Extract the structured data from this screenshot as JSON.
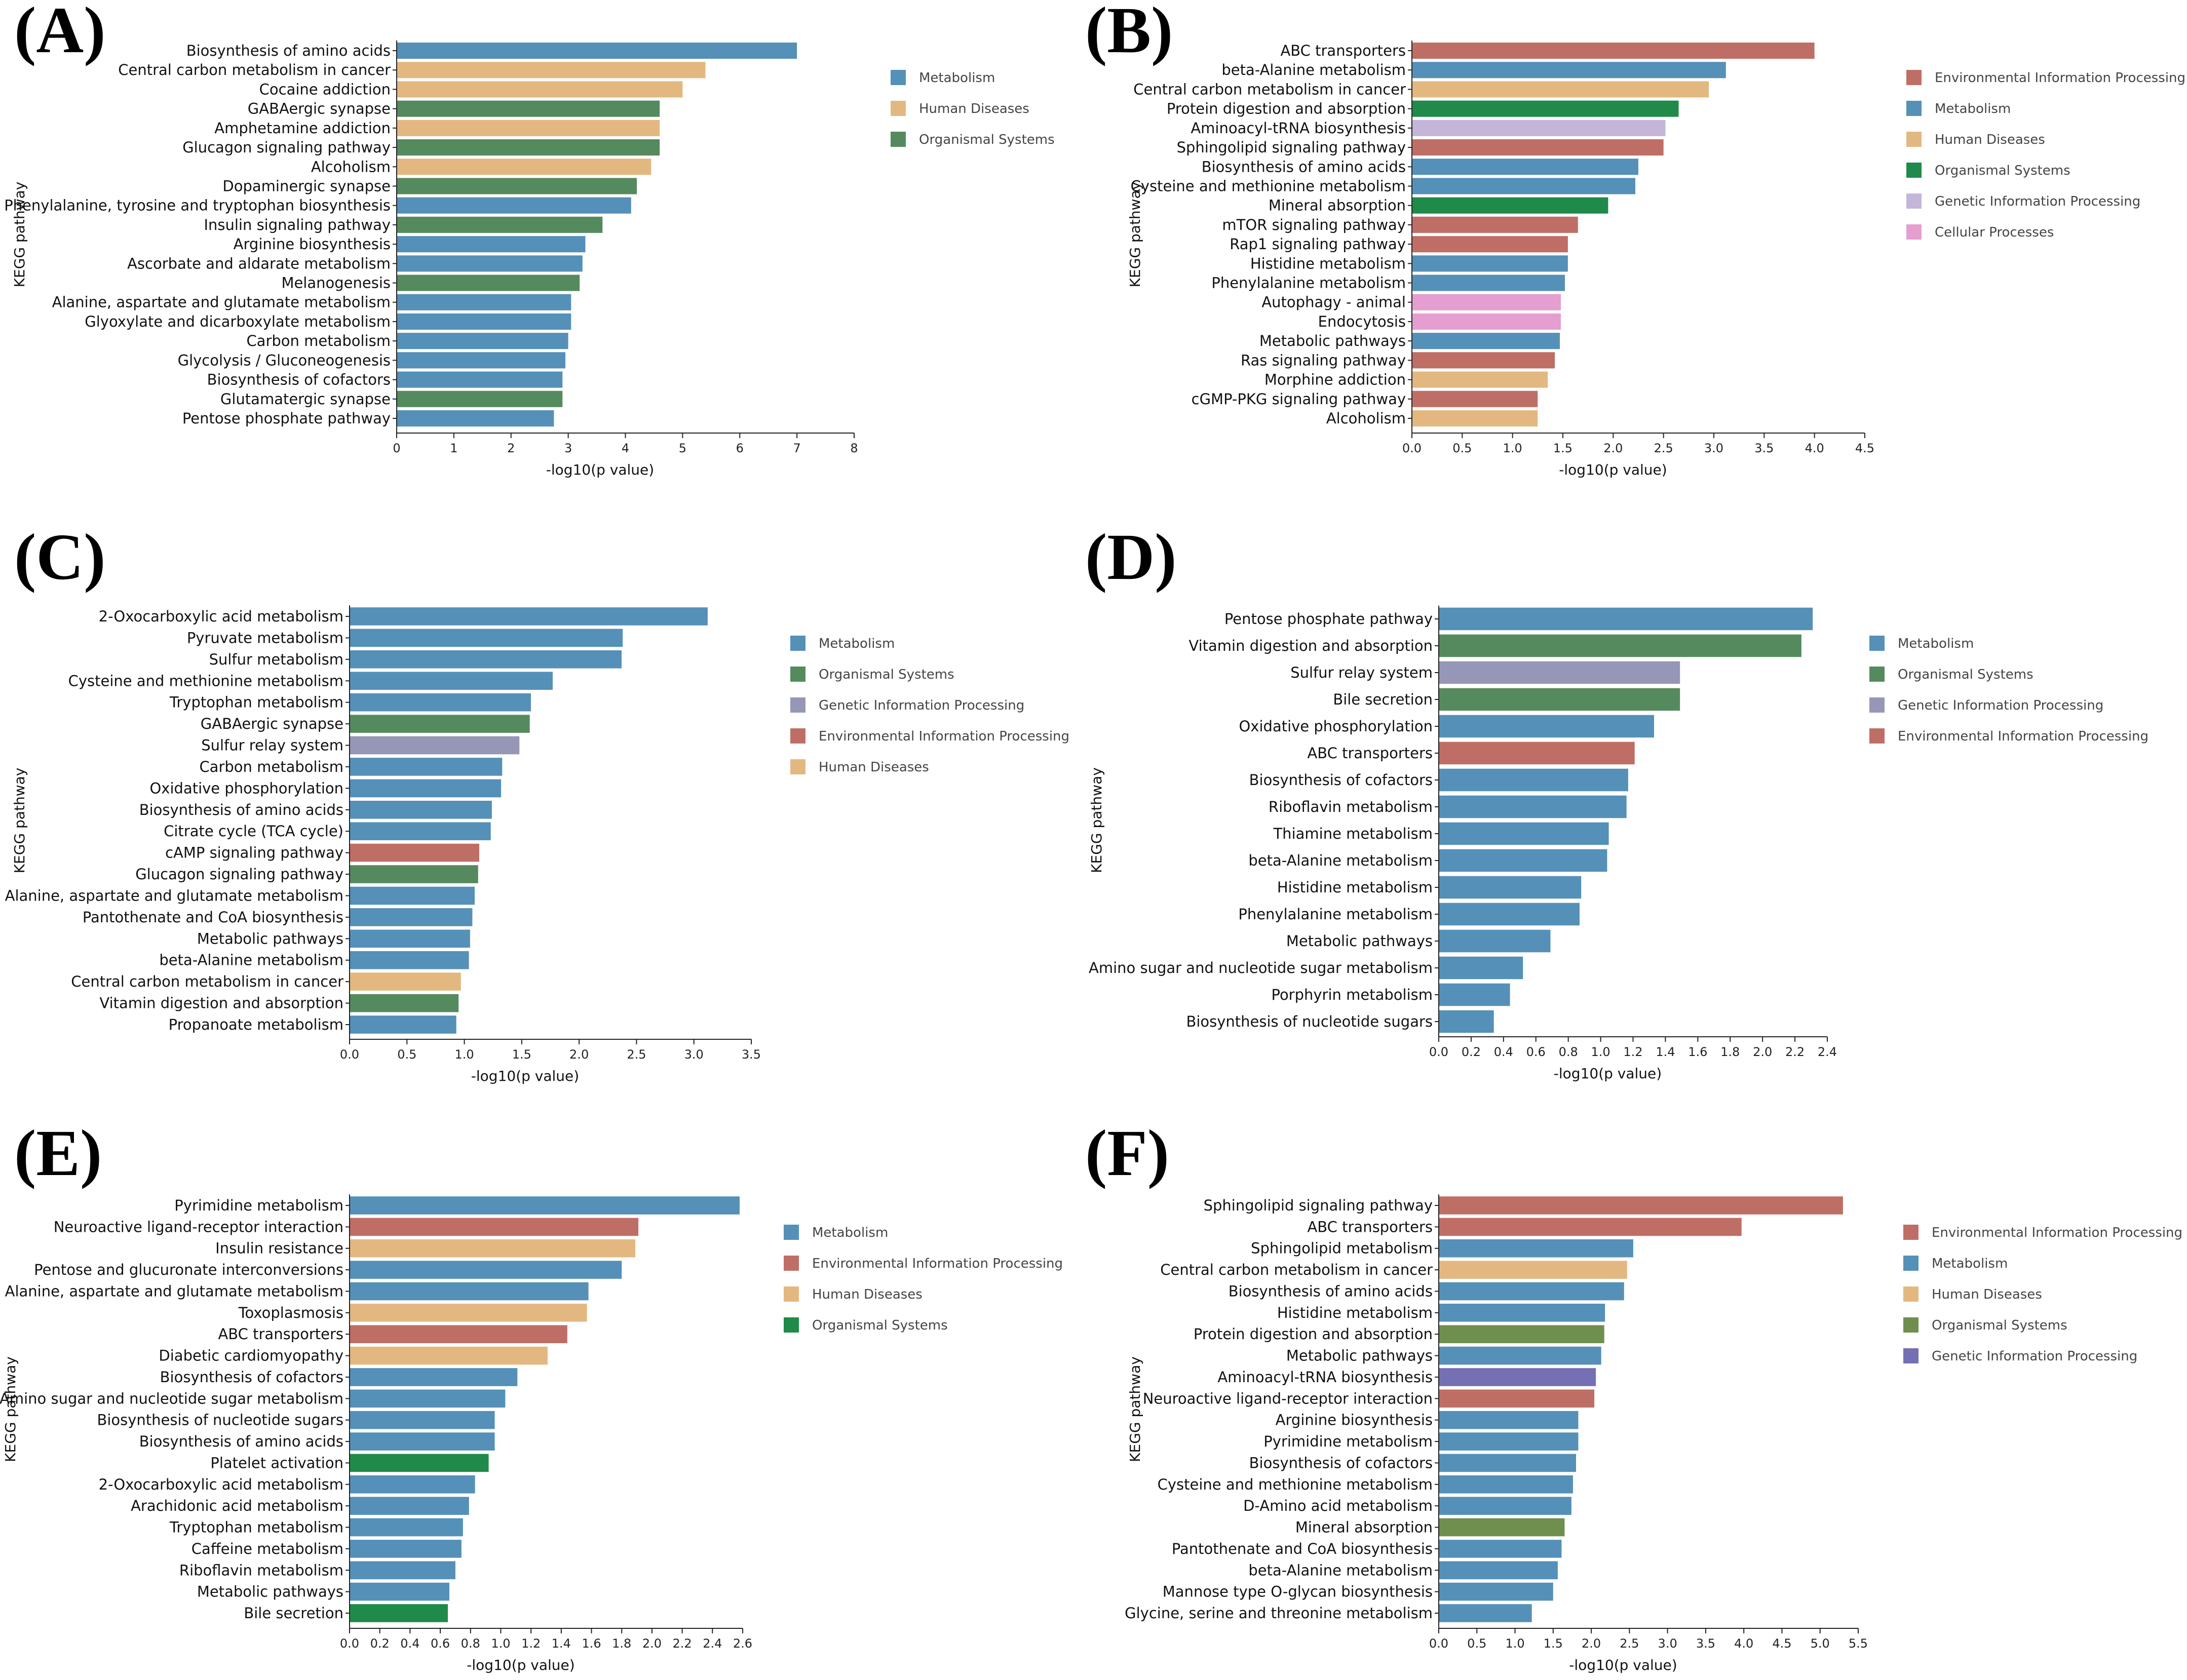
{
  "colors": {
    "Metabolism": "#5590b8",
    "Human Diseases": "#e3b880",
    "Organismal Systems": "#558a5f",
    "Environmental Information Processing": "#bf6e66",
    "Genetic Information Processing": "#9697b6",
    "Cellular Processes": "#e59ed0"
  },
  "chart_data": [
    {
      "type": "bar",
      "orientation": "horizontal",
      "panel": "(A)",
      "ylabel": "KEGG pathway",
      "xlabel": "-log10(p value)",
      "xlim": [
        0,
        8
      ],
      "xticks": [
        "0",
        "1",
        "2",
        "3",
        "4",
        "5",
        "6",
        "7",
        "8"
      ],
      "colors": {
        "Metabolism": "#5590b8",
        "Human Diseases": "#e3b880",
        "Organismal Systems": "#558a5f"
      },
      "legend": [
        "Metabolism",
        "Human Diseases",
        "Organismal Systems"
      ],
      "categories": [
        "Biosynthesis of amino acids",
        "Central carbon metabolism in cancer",
        "Cocaine addiction",
        "GABAergic synapse",
        "Amphetamine addiction",
        "Glucagon signaling pathway",
        "Alcoholism",
        "Dopaminergic synapse",
        "Phenylalanine, tyrosine and tryptophan biosynthesis",
        "Insulin signaling pathway",
        "Arginine biosynthesis",
        "Ascorbate and aldarate metabolism",
        "Melanogenesis",
        "Alanine, aspartate and glutamate metabolism",
        "Glyoxylate and dicarboxylate metabolism",
        "Carbon metabolism",
        "Glycolysis / Gluconeogenesis",
        "Biosynthesis of cofactors",
        "Glutamatergic synapse",
        "Pentose phosphate pathway"
      ],
      "values": [
        7.0,
        5.4,
        5.0,
        4.6,
        4.6,
        4.6,
        4.45,
        4.2,
        4.1,
        3.6,
        3.3,
        3.25,
        3.2,
        3.05,
        3.05,
        3.0,
        2.95,
        2.9,
        2.9,
        2.75
      ],
      "groups": [
        "Metabolism",
        "Human Diseases",
        "Human Diseases",
        "Organismal Systems",
        "Human Diseases",
        "Organismal Systems",
        "Human Diseases",
        "Organismal Systems",
        "Metabolism",
        "Organismal Systems",
        "Metabolism",
        "Metabolism",
        "Organismal Systems",
        "Metabolism",
        "Metabolism",
        "Metabolism",
        "Metabolism",
        "Metabolism",
        "Organismal Systems",
        "Metabolism"
      ]
    },
    {
      "type": "bar",
      "orientation": "horizontal",
      "panel": "(B)",
      "ylabel": "KEGG pathway",
      "xlabel": "-log10(p value)",
      "xlim": [
        0,
        4.5
      ],
      "xticks": [
        "0.0",
        "0.5",
        "1.0",
        "1.5",
        "2.0",
        "2.5",
        "3.0",
        "3.5",
        "4.0",
        "4.5"
      ],
      "colors": {
        "Environmental Information Processing": "#bf6e66",
        "Metabolism": "#5590b8",
        "Human Diseases": "#e3b880",
        "Organismal Systems": "#1f8a4a",
        "Genetic Information Processing": "#c3b6d9",
        "Cellular Processes": "#e59ed0"
      },
      "legend": [
        "Environmental Information Processing",
        "Metabolism",
        "Human Diseases",
        "Organismal Systems",
        "Genetic Information Processing",
        "Cellular Processes"
      ],
      "categories": [
        "ABC transporters",
        "beta-Alanine metabolism",
        "Central carbon metabolism in cancer",
        "Protein digestion and absorption",
        "Aminoacyl-tRNA biosynthesis",
        "Sphingolipid signaling pathway",
        "Biosynthesis of amino acids",
        "Cysteine and methionine metabolism",
        "Mineral absorption",
        "mTOR signaling pathway",
        "Rap1 signaling pathway",
        "Histidine metabolism",
        "Phenylalanine metabolism",
        "Autophagy - animal",
        "Endocytosis",
        "Metabolic pathways",
        "Ras signaling pathway",
        "Morphine addiction",
        "cGMP-PKG signaling pathway",
        "Alcoholism"
      ],
      "values": [
        4.0,
        3.12,
        2.95,
        2.65,
        2.52,
        2.5,
        2.25,
        2.22,
        1.95,
        1.65,
        1.55,
        1.55,
        1.52,
        1.48,
        1.48,
        1.47,
        1.42,
        1.35,
        1.25,
        1.25
      ],
      "groups": [
        "Environmental Information Processing",
        "Metabolism",
        "Human Diseases",
        "Organismal Systems",
        "Genetic Information Processing",
        "Environmental Information Processing",
        "Metabolism",
        "Metabolism",
        "Organismal Systems",
        "Environmental Information Processing",
        "Environmental Information Processing",
        "Metabolism",
        "Metabolism",
        "Cellular Processes",
        "Cellular Processes",
        "Metabolism",
        "Environmental Information Processing",
        "Human Diseases",
        "Environmental Information Processing",
        "Human Diseases"
      ]
    },
    {
      "type": "bar",
      "orientation": "horizontal",
      "panel": "(C)",
      "ylabel": "KEGG pathway",
      "xlabel": "-log10(p value)",
      "xlim": [
        0,
        3.5
      ],
      "xticks": [
        "0.0",
        "0.5",
        "1.0",
        "1.5",
        "2.0",
        "2.5",
        "3.0",
        "3.5"
      ],
      "colors": {
        "Metabolism": "#5590b8",
        "Organismal Systems": "#558a5f",
        "Genetic Information Processing": "#9697b6",
        "Environmental Information Processing": "#bf6e66",
        "Human Diseases": "#e3b880"
      },
      "legend": [
        "Metabolism",
        "Organismal Systems",
        "Genetic Information Processing",
        "Environmental Information Processing",
        "Human Diseases"
      ],
      "categories": [
        "2-Oxocarboxylic acid metabolism",
        "Pyruvate metabolism",
        "Sulfur metabolism",
        "Cysteine and methionine metabolism",
        "Tryptophan metabolism",
        "GABAergic synapse",
        "Sulfur relay system",
        "Carbon metabolism",
        "Oxidative phosphorylation",
        "Biosynthesis of amino acids",
        "Citrate cycle (TCA cycle)",
        "cAMP signaling pathway",
        "Glucagon signaling pathway",
        "Alanine, aspartate and glutamate metabolism",
        "Pantothenate and CoA biosynthesis",
        "Metabolic pathways",
        "beta-Alanine metabolism",
        "Central carbon metabolism in cancer",
        "Vitamin digestion and absorption",
        "Propanoate metabolism"
      ],
      "values": [
        3.12,
        2.38,
        2.37,
        1.77,
        1.58,
        1.57,
        1.48,
        1.33,
        1.32,
        1.24,
        1.23,
        1.13,
        1.12,
        1.09,
        1.07,
        1.05,
        1.04,
        0.97,
        0.95,
        0.93
      ],
      "groups": [
        "Metabolism",
        "Metabolism",
        "Metabolism",
        "Metabolism",
        "Metabolism",
        "Organismal Systems",
        "Genetic Information Processing",
        "Metabolism",
        "Metabolism",
        "Metabolism",
        "Metabolism",
        "Environmental Information Processing",
        "Organismal Systems",
        "Metabolism",
        "Metabolism",
        "Metabolism",
        "Metabolism",
        "Human Diseases",
        "Organismal Systems",
        "Metabolism"
      ]
    },
    {
      "type": "bar",
      "orientation": "horizontal",
      "panel": "(D)",
      "ylabel": "KEGG pathway",
      "xlabel": "-log10(p value)",
      "xlim": [
        0,
        2.4
      ],
      "xticks": [
        "0.0",
        "0.2",
        "0.4",
        "0.6",
        "0.8",
        "1.0",
        "1.2",
        "1.4",
        "1.6",
        "1.8",
        "2.0",
        "2.2",
        "2.4"
      ],
      "colors": {
        "Metabolism": "#5590b8",
        "Organismal Systems": "#558a5f",
        "Genetic Information Processing": "#9697b6",
        "Environmental Information Processing": "#bf6e66"
      },
      "legend": [
        "Metabolism",
        "Organismal Systems",
        "Genetic Information Processing",
        "Environmental Information Processing"
      ],
      "categories": [
        "Pentose phosphate pathway",
        "Vitamin digestion and absorption",
        "Sulfur relay system",
        "Bile secretion",
        "Oxidative phosphorylation",
        "ABC transporters",
        "Biosynthesis of cofactors",
        "Riboflavin metabolism",
        "Thiamine metabolism",
        "beta-Alanine metabolism",
        "Histidine metabolism",
        "Phenylalanine metabolism",
        "Metabolic pathways",
        "Amino sugar and nucleotide sugar metabolism",
        "Porphyrin metabolism",
        "Biosynthesis of nucleotide sugars"
      ],
      "values": [
        2.31,
        2.24,
        1.49,
        1.49,
        1.33,
        1.21,
        1.17,
        1.16,
        1.05,
        1.04,
        0.88,
        0.87,
        0.69,
        0.52,
        0.44,
        0.34
      ],
      "groups": [
        "Metabolism",
        "Organismal Systems",
        "Genetic Information Processing",
        "Organismal Systems",
        "Metabolism",
        "Environmental Information Processing",
        "Metabolism",
        "Metabolism",
        "Metabolism",
        "Metabolism",
        "Metabolism",
        "Metabolism",
        "Metabolism",
        "Metabolism",
        "Metabolism",
        "Metabolism"
      ]
    },
    {
      "type": "bar",
      "orientation": "horizontal",
      "panel": "(E)",
      "ylabel": "KEGG pathway",
      "xlabel": "-log10(p value)",
      "xlim": [
        0,
        2.6
      ],
      "xticks": [
        "0.0",
        "0.2",
        "0.4",
        "0.6",
        "0.8",
        "1.0",
        "1.2",
        "1.4",
        "1.6",
        "1.8",
        "2.0",
        "2.2",
        "2.4",
        "2.6"
      ],
      "colors": {
        "Metabolism": "#5590b8",
        "Environmental Information Processing": "#bf6e66",
        "Human Diseases": "#e3b880",
        "Organismal Systems": "#1f8a4a"
      },
      "legend": [
        "Metabolism",
        "Environmental Information Processing",
        "Human Diseases",
        "Organismal Systems"
      ],
      "categories": [
        "Pyrimidine metabolism",
        "Neuroactive ligand-receptor interaction",
        "Insulin resistance",
        "Pentose and glucuronate interconversions",
        "Alanine, aspartate and glutamate metabolism",
        "Toxoplasmosis",
        "ABC transporters",
        "Diabetic cardiomyopathy",
        "Biosynthesis of cofactors",
        "Amino sugar and nucleotide sugar metabolism",
        "Biosynthesis of nucleotide sugars",
        "Biosynthesis of amino acids",
        "Platelet activation",
        "2-Oxocarboxylic acid metabolism",
        "Arachidonic acid metabolism",
        "Tryptophan metabolism",
        "Caffeine metabolism",
        "Riboflavin metabolism",
        "Metabolic pathways",
        "Bile secretion"
      ],
      "values": [
        2.58,
        1.91,
        1.89,
        1.8,
        1.58,
        1.57,
        1.44,
        1.31,
        1.11,
        1.03,
        0.96,
        0.96,
        0.92,
        0.83,
        0.79,
        0.75,
        0.74,
        0.7,
        0.66,
        0.65
      ],
      "groups": [
        "Metabolism",
        "Environmental Information Processing",
        "Human Diseases",
        "Metabolism",
        "Metabolism",
        "Human Diseases",
        "Environmental Information Processing",
        "Human Diseases",
        "Metabolism",
        "Metabolism",
        "Metabolism",
        "Metabolism",
        "Organismal Systems",
        "Metabolism",
        "Metabolism",
        "Metabolism",
        "Metabolism",
        "Metabolism",
        "Metabolism",
        "Organismal Systems"
      ]
    },
    {
      "type": "bar",
      "orientation": "horizontal",
      "panel": "(F)",
      "ylabel": "KEGG pathway",
      "xlabel": "-log10(p value)",
      "xlim": [
        0,
        5.5
      ],
      "xticks": [
        "0.0",
        "0.5",
        "1.0",
        "1.5",
        "2.0",
        "2.5",
        "3.0",
        "3.5",
        "4.0",
        "4.5",
        "5.0",
        "5.5"
      ],
      "colors": {
        "Environmental Information Processing": "#bf6e66",
        "Metabolism": "#5590b8",
        "Human Diseases": "#e3b880",
        "Organismal Systems": "#6f8f4e",
        "Genetic Information Processing": "#7470b3"
      },
      "legend": [
        "Environmental Information Processing",
        "Metabolism",
        "Human Diseases",
        "Organismal Systems",
        "Genetic Information Processing"
      ],
      "categories": [
        "Sphingolipid signaling pathway",
        "ABC transporters",
        "Sphingolipid metabolism",
        "Central carbon metabolism in cancer",
        "Biosynthesis of amino acids",
        "Histidine metabolism",
        "Protein digestion and absorption",
        "Metabolic pathways",
        "Aminoacyl-tRNA biosynthesis",
        "Neuroactive ligand-receptor interaction",
        "Arginine biosynthesis",
        "Pyrimidine metabolism",
        "Biosynthesis of cofactors",
        "Cysteine and methionine metabolism",
        "D-Amino acid metabolism",
        "Mineral absorption",
        "Pantothenate and CoA biosynthesis",
        "beta-Alanine metabolism",
        "Mannose type O-glycan biosynthesis",
        "Glycine, serine and threonine metabolism"
      ],
      "values": [
        5.3,
        3.97,
        2.55,
        2.47,
        2.43,
        2.18,
        2.17,
        2.13,
        2.06,
        2.04,
        1.83,
        1.83,
        1.8,
        1.76,
        1.74,
        1.65,
        1.61,
        1.56,
        1.5,
        1.22
      ],
      "groups": [
        "Environmental Information Processing",
        "Environmental Information Processing",
        "Metabolism",
        "Human Diseases",
        "Metabolism",
        "Metabolism",
        "Organismal Systems",
        "Metabolism",
        "Genetic Information Processing",
        "Environmental Information Processing",
        "Metabolism",
        "Metabolism",
        "Metabolism",
        "Metabolism",
        "Metabolism",
        "Organismal Systems",
        "Metabolism",
        "Metabolism",
        "Metabolism",
        "Metabolism"
      ]
    }
  ]
}
